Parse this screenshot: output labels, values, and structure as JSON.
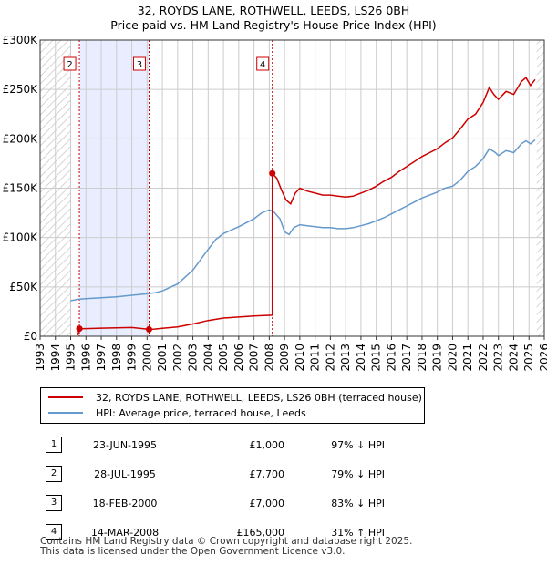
{
  "title_line1": "32, ROYDS LANE, ROTHWELL, LEEDS, LS26 0BH",
  "title_line2": "Price paid vs. HM Land Registry's House Price Index (HPI)",
  "colors": {
    "price": "#cc0000",
    "hpi": "#6699cc",
    "shade": "#e8eeff",
    "hatch": "#c8c8c8"
  },
  "chart_data": {
    "type": "line",
    "title": "Price paid vs. HM Land Registry's House Price Index (HPI)",
    "xlabel": "",
    "ylabel": "",
    "xlim": [
      1993,
      2026
    ],
    "ylim": [
      0,
      300000
    ],
    "y_ticks": [
      {
        "value": 0,
        "label": "£0"
      },
      {
        "value": 50000,
        "label": "£50K"
      },
      {
        "value": 100000,
        "label": "£100K"
      },
      {
        "value": 150000,
        "label": "£150K"
      },
      {
        "value": 200000,
        "label": "£200K"
      },
      {
        "value": 250000,
        "label": "£250K"
      },
      {
        "value": 300000,
        "label": "£300K"
      }
    ],
    "x_ticks": [
      "1993",
      "1994",
      "1995",
      "1996",
      "1997",
      "1998",
      "1999",
      "2000",
      "2001",
      "2002",
      "2003",
      "2004",
      "2005",
      "2006",
      "2007",
      "2008",
      "2009",
      "2010",
      "2011",
      "2012",
      "2013",
      "2014",
      "2015",
      "2016",
      "2017",
      "2018",
      "2019",
      "2020",
      "2021",
      "2022",
      "2023",
      "2024",
      "2025",
      "2026"
    ],
    "shaded_ranges": [
      [
        1995.6,
        2000.13
      ]
    ],
    "hatched_ranges": [
      [
        1993,
        1995.0
      ],
      [
        2025.5,
        2026
      ]
    ],
    "series": [
      {
        "name": "32, ROYDS LANE, ROTHWELL, LEEDS, LS26 0BH (terraced house)",
        "color": "#cc0000",
        "points": [
          [
            1995.47,
            1000
          ],
          [
            1995.57,
            7700
          ],
          [
            1996.0,
            7800
          ],
          [
            1997.0,
            8200
          ],
          [
            1998.0,
            8600
          ],
          [
            1999.0,
            8900
          ],
          [
            2000.13,
            7000
          ],
          [
            2000.5,
            7300
          ],
          [
            2001.0,
            8000
          ],
          [
            2002.0,
            9500
          ],
          [
            2003.0,
            12500
          ],
          [
            2004.0,
            16000
          ],
          [
            2005.0,
            18500
          ],
          [
            2006.0,
            19500
          ],
          [
            2007.0,
            20500
          ],
          [
            2008.0,
            21200
          ],
          [
            2008.2,
            21300
          ],
          [
            2008.2,
            165000
          ],
          [
            2008.5,
            160000
          ],
          [
            2008.8,
            148000
          ],
          [
            2009.1,
            138000
          ],
          [
            2009.4,
            134000
          ],
          [
            2009.7,
            145000
          ],
          [
            2010.0,
            150000
          ],
          [
            2010.5,
            147000
          ],
          [
            2011.0,
            145000
          ],
          [
            2011.5,
            143000
          ],
          [
            2012.0,
            143000
          ],
          [
            2012.5,
            142000
          ],
          [
            2013.0,
            141000
          ],
          [
            2013.5,
            142000
          ],
          [
            2014.0,
            145000
          ],
          [
            2014.5,
            148000
          ],
          [
            2015.0,
            152000
          ],
          [
            2015.5,
            157000
          ],
          [
            2016.0,
            161000
          ],
          [
            2016.5,
            167000
          ],
          [
            2017.0,
            172000
          ],
          [
            2017.5,
            177000
          ],
          [
            2018.0,
            182000
          ],
          [
            2018.5,
            186000
          ],
          [
            2019.0,
            190000
          ],
          [
            2019.5,
            196000
          ],
          [
            2020.0,
            201000
          ],
          [
            2020.5,
            210000
          ],
          [
            2021.0,
            220000
          ],
          [
            2021.5,
            225000
          ],
          [
            2022.0,
            237000
          ],
          [
            2022.4,
            252000
          ],
          [
            2022.7,
            245000
          ],
          [
            2023.0,
            240000
          ],
          [
            2023.5,
            248000
          ],
          [
            2024.0,
            245000
          ],
          [
            2024.5,
            258000
          ],
          [
            2024.8,
            262000
          ],
          [
            2025.1,
            254000
          ],
          [
            2025.4,
            260000
          ]
        ]
      },
      {
        "name": "HPI: Average price, terraced house, Leeds",
        "color": "#6699cc",
        "points": [
          [
            1995.0,
            36000
          ],
          [
            1995.5,
            37500
          ],
          [
            1996.0,
            38000
          ],
          [
            1997.0,
            39000
          ],
          [
            1998.0,
            40000
          ],
          [
            1999.0,
            41500
          ],
          [
            2000.0,
            43000
          ],
          [
            2000.5,
            44000
          ],
          [
            2001.0,
            46000
          ],
          [
            2002.0,
            53000
          ],
          [
            2003.0,
            67000
          ],
          [
            2004.0,
            88000
          ],
          [
            2004.5,
            98000
          ],
          [
            2005.0,
            104000
          ],
          [
            2006.0,
            111000
          ],
          [
            2007.0,
            119000
          ],
          [
            2007.5,
            125000
          ],
          [
            2008.0,
            128000
          ],
          [
            2008.3,
            126000
          ],
          [
            2008.7,
            119000
          ],
          [
            2009.0,
            106000
          ],
          [
            2009.3,
            103000
          ],
          [
            2009.6,
            110000
          ],
          [
            2010.0,
            113000
          ],
          [
            2010.5,
            112000
          ],
          [
            2011.0,
            111000
          ],
          [
            2011.5,
            110000
          ],
          [
            2012.0,
            110000
          ],
          [
            2012.5,
            109000
          ],
          [
            2013.0,
            109000
          ],
          [
            2013.5,
            110000
          ],
          [
            2014.0,
            112000
          ],
          [
            2014.5,
            114000
          ],
          [
            2015.0,
            117000
          ],
          [
            2015.5,
            120000
          ],
          [
            2016.0,
            124000
          ],
          [
            2016.5,
            128000
          ],
          [
            2017.0,
            132000
          ],
          [
            2017.5,
            136000
          ],
          [
            2018.0,
            140000
          ],
          [
            2018.5,
            143000
          ],
          [
            2019.0,
            146000
          ],
          [
            2019.5,
            150000
          ],
          [
            2020.0,
            152000
          ],
          [
            2020.5,
            158000
          ],
          [
            2021.0,
            167000
          ],
          [
            2021.5,
            172000
          ],
          [
            2022.0,
            180000
          ],
          [
            2022.4,
            190000
          ],
          [
            2022.8,
            186000
          ],
          [
            2023.0,
            183000
          ],
          [
            2023.5,
            188000
          ],
          [
            2024.0,
            186000
          ],
          [
            2024.5,
            195000
          ],
          [
            2024.8,
            198000
          ],
          [
            2025.1,
            195000
          ],
          [
            2025.4,
            199000
          ]
        ]
      }
    ],
    "sale_markers": [
      {
        "label": "2",
        "x": 1995.57,
        "y": 7700
      },
      {
        "label": "3",
        "x": 2000.13,
        "y": 7000
      },
      {
        "label": "4",
        "x": 2008.2,
        "y": 165000
      }
    ],
    "event_lines": [
      1995.57,
      2000.13,
      2008.2
    ]
  },
  "legend": {
    "items": [
      {
        "label": "32, ROYDS LANE, ROTHWELL, LEEDS, LS26 0BH (terraced house)"
      },
      {
        "label": "HPI: Average price, terraced house, Leeds"
      }
    ]
  },
  "transactions": [
    {
      "num": "1",
      "date": "23-JUN-1995",
      "price": "£1,000",
      "hpi": "97% ↓ HPI"
    },
    {
      "num": "2",
      "date": "28-JUL-1995",
      "price": "£7,700",
      "hpi": "79% ↓ HPI"
    },
    {
      "num": "3",
      "date": "18-FEB-2000",
      "price": "£7,000",
      "hpi": "83% ↓ HPI"
    },
    {
      "num": "4",
      "date": "14-MAR-2008",
      "price": "£165,000",
      "hpi": "31% ↑ HPI"
    }
  ],
  "footer": {
    "line1": "Contains HM Land Registry data © Crown copyright and database right 2025.",
    "line2": "This data is licensed under the Open Government Licence v3.0."
  }
}
